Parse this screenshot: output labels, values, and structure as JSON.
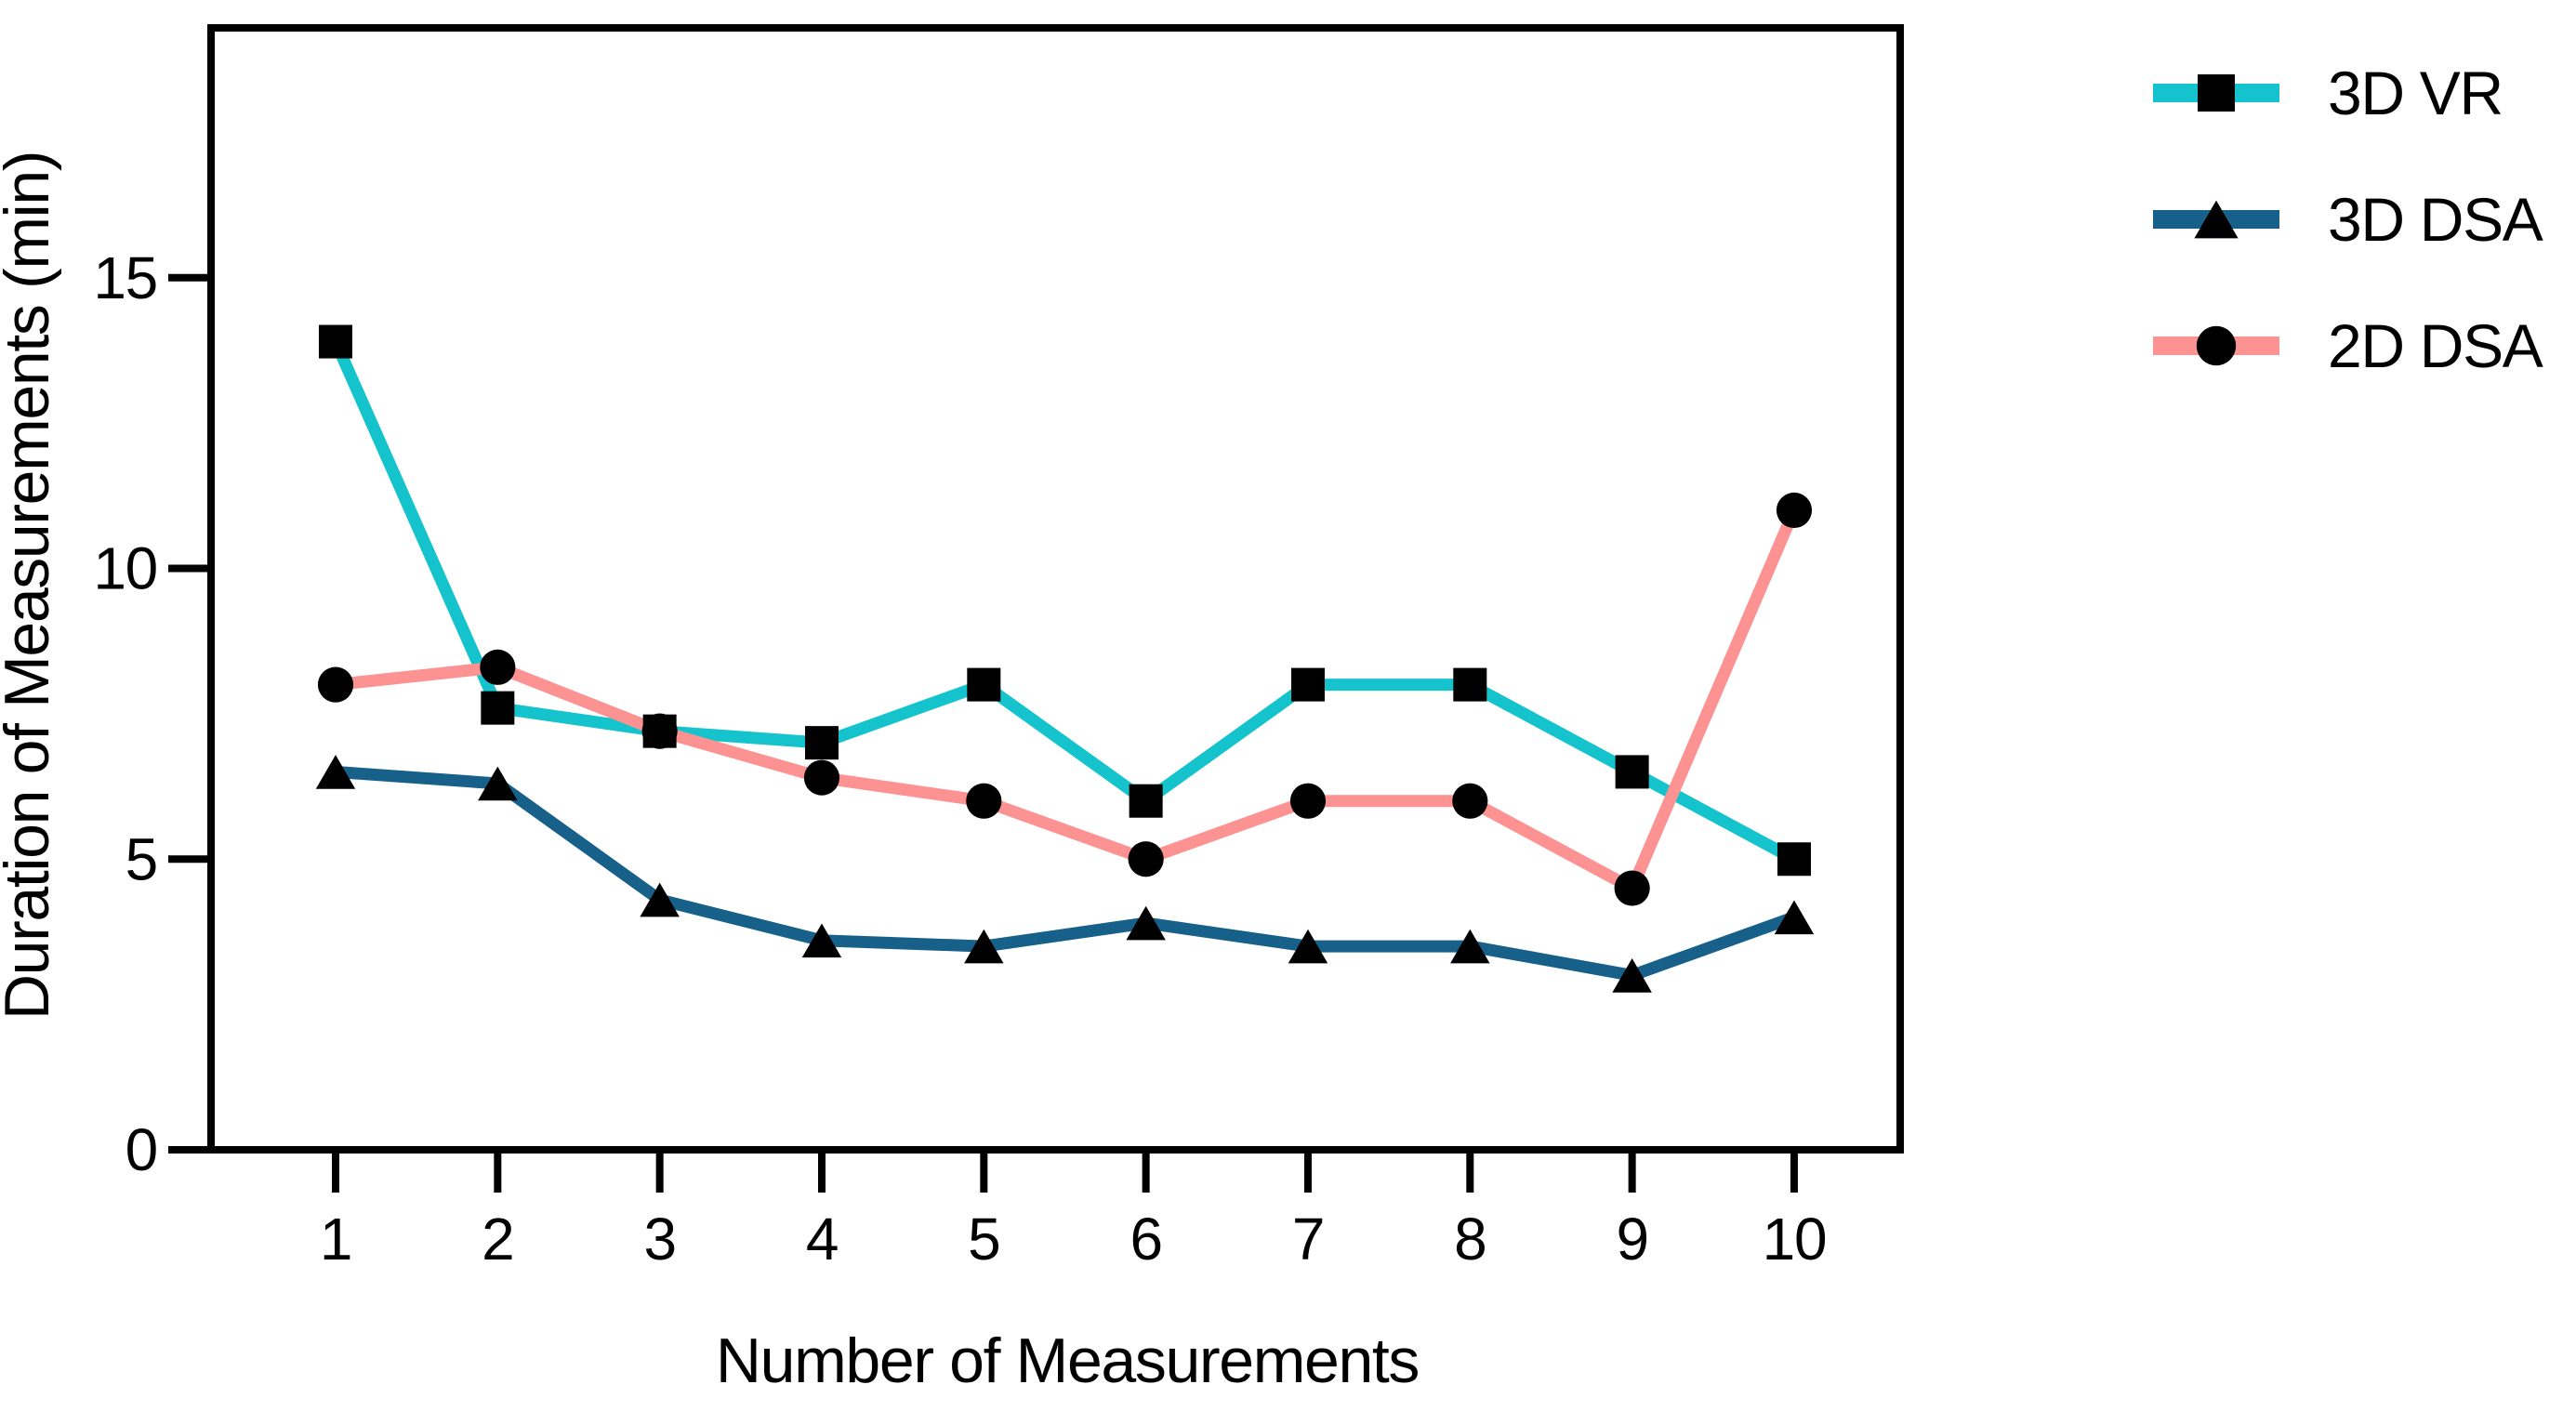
{
  "chart_data": {
    "type": "line",
    "title": "",
    "xlabel": "Number of Measurements",
    "ylabel": "Duration of Measurements  (min)",
    "x": [
      1,
      2,
      3,
      4,
      5,
      6,
      7,
      8,
      9,
      10
    ],
    "xticks": [
      1,
      2,
      3,
      4,
      5,
      6,
      7,
      8,
      9,
      10
    ],
    "yticks": [
      0,
      5,
      10,
      15
    ],
    "ylim": [
      0,
      19.3
    ],
    "xlim_categories": "1 to 10, categorical spacing",
    "grid": false,
    "legend_position": "top-right-outside",
    "marker_color": "#000000",
    "axis_color": "#000000",
    "background_color": "#ffffff",
    "series": [
      {
        "name": "3D VR",
        "color": "#14C3CC",
        "marker": "square",
        "values": [
          13.9,
          7.6,
          7.2,
          7.0,
          8.0,
          6.0,
          8.0,
          8.0,
          6.5,
          5.0
        ]
      },
      {
        "name": "3D DSA",
        "color": "#16608A",
        "marker": "triangle",
        "values": [
          6.5,
          6.3,
          4.3,
          3.6,
          3.5,
          3.9,
          3.5,
          3.5,
          3.0,
          4.0
        ]
      },
      {
        "name": "2D DSA",
        "color": "#FC9292",
        "marker": "circle",
        "values": [
          8.0,
          8.3,
          7.2,
          6.4,
          6.0,
          5.0,
          6.0,
          6.0,
          4.5,
          11.0
        ]
      }
    ]
  }
}
